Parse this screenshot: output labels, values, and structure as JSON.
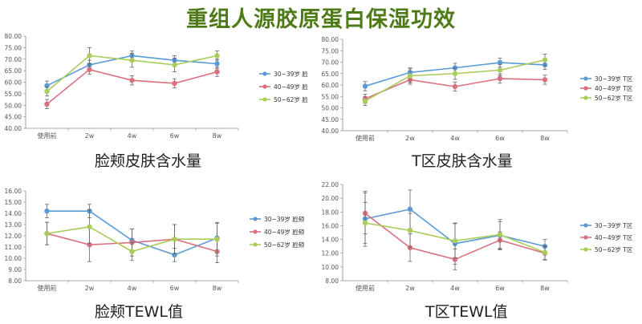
{
  "page_title": "重组人源胶原蛋白保湿功效",
  "colors": {
    "title": "#4f7a18",
    "series": [
      "#5b9bd5",
      "#d9707f",
      "#a9cc5a"
    ]
  },
  "chart_data": [
    {
      "type": "line",
      "caption": "脸颊皮肤含水量",
      "categories": [
        "使用前",
        "2w",
        "4w",
        "6w",
        "8w"
      ],
      "ylim": [
        40,
        80
      ],
      "yticks": [
        "40.00",
        "45.00",
        "50.00",
        "55.00",
        "60.00",
        "65.00",
        "70.00",
        "75.00",
        "80.00"
      ],
      "legend_position": "right",
      "series": [
        {
          "name": "30~39岁 脸",
          "values": [
            58.5,
            67.5,
            71.5,
            69.5,
            68.0
          ],
          "errors": [
            2.0,
            2.0,
            2.0,
            2.0,
            2.0
          ]
        },
        {
          "name": "40~49岁 脸",
          "values": [
            50.5,
            65.5,
            60.8,
            59.5,
            64.5
          ],
          "errors": [
            2.0,
            2.0,
            2.0,
            2.0,
            2.0
          ]
        },
        {
          "name": "50~62岁 脸",
          "values": [
            56.0,
            71.5,
            69.5,
            67.5,
            71.5
          ],
          "errors": [
            2.0,
            3.5,
            3.0,
            3.0,
            2.0
          ]
        }
      ]
    },
    {
      "type": "line",
      "caption": "T区皮肤含水量",
      "categories": [
        "使用前",
        "2w",
        "4w",
        "6w",
        "8w"
      ],
      "ylim": [
        40,
        80
      ],
      "yticks": [
        "40.00",
        "45.00",
        "50.00",
        "55.00",
        "60.00",
        "65.00",
        "70.00",
        "75.00",
        "80.00"
      ],
      "legend_position": "right",
      "series": [
        {
          "name": "30~39岁 T区",
          "values": [
            59.5,
            65.5,
            67.5,
            69.8,
            68.8
          ],
          "errors": [
            2.0,
            2.0,
            2.0,
            2.0,
            2.0
          ]
        },
        {
          "name": "40~49岁 T区",
          "values": [
            54.0,
            62.3,
            59.3,
            62.8,
            62.3
          ],
          "errors": [
            2.0,
            2.0,
            2.0,
            2.0,
            2.0
          ]
        },
        {
          "name": "50~62岁 T区",
          "values": [
            53.0,
            64.0,
            65.0,
            66.5,
            71.0
          ],
          "errors": [
            2.0,
            3.0,
            2.5,
            2.5,
            2.5
          ]
        }
      ]
    },
    {
      "type": "line",
      "caption": "脸颊TEWL值",
      "categories": [
        "使用前",
        "2w",
        "4w",
        "6w",
        "8w"
      ],
      "ylim": [
        8,
        16
      ],
      "yticks": [
        "8.00",
        "9.00",
        "10.00",
        "11.00",
        "12.00",
        "13.00",
        "14.00",
        "15.00",
        "16.00"
      ],
      "legend_position": "right",
      "series": [
        {
          "name": "30~39岁 脸颊",
          "values": [
            14.2,
            14.2,
            11.6,
            10.3,
            11.8
          ],
          "errors": [
            0.6,
            0.6,
            1.0,
            0.6,
            1.3
          ]
        },
        {
          "name": "40~49岁 脸颊",
          "values": [
            12.2,
            11.2,
            11.4,
            11.7,
            10.6
          ],
          "errors": [
            1.0,
            1.5,
            1.2,
            1.3,
            1.0
          ]
        },
        {
          "name": "50~62岁 脸颊",
          "values": [
            12.2,
            12.8,
            10.6,
            11.7,
            11.7
          ],
          "errors": [
            1.0,
            1.5,
            0.8,
            1.3,
            1.5
          ]
        }
      ]
    },
    {
      "type": "line",
      "caption": "T区TEWL值",
      "categories": [
        "使用前",
        "2w",
        "4w",
        "6w",
        "8w"
      ],
      "ylim": [
        8,
        22
      ],
      "yticks": [
        "8.00",
        "10.00",
        "12.00",
        "14.00",
        "16.00",
        "18.00",
        "20.00",
        "22.00"
      ],
      "legend_position": "right",
      "series": [
        {
          "name": "30~39岁 T区",
          "values": [
            17.0,
            18.4,
            13.4,
            14.6,
            13.0
          ],
          "errors": [
            4.0,
            2.8,
            3.0,
            2.0,
            1.0
          ]
        },
        {
          "name": "40~49岁 T区",
          "values": [
            17.8,
            12.8,
            11.1,
            13.9,
            12.0
          ],
          "errors": [
            3.0,
            2.0,
            1.5,
            1.2,
            1.0
          ]
        },
        {
          "name": "50~62岁 T区",
          "values": [
            16.4,
            15.3,
            13.8,
            14.7,
            12.1
          ],
          "errors": [
            3.0,
            2.5,
            2.5,
            2.2,
            1.0
          ]
        }
      ]
    }
  ]
}
